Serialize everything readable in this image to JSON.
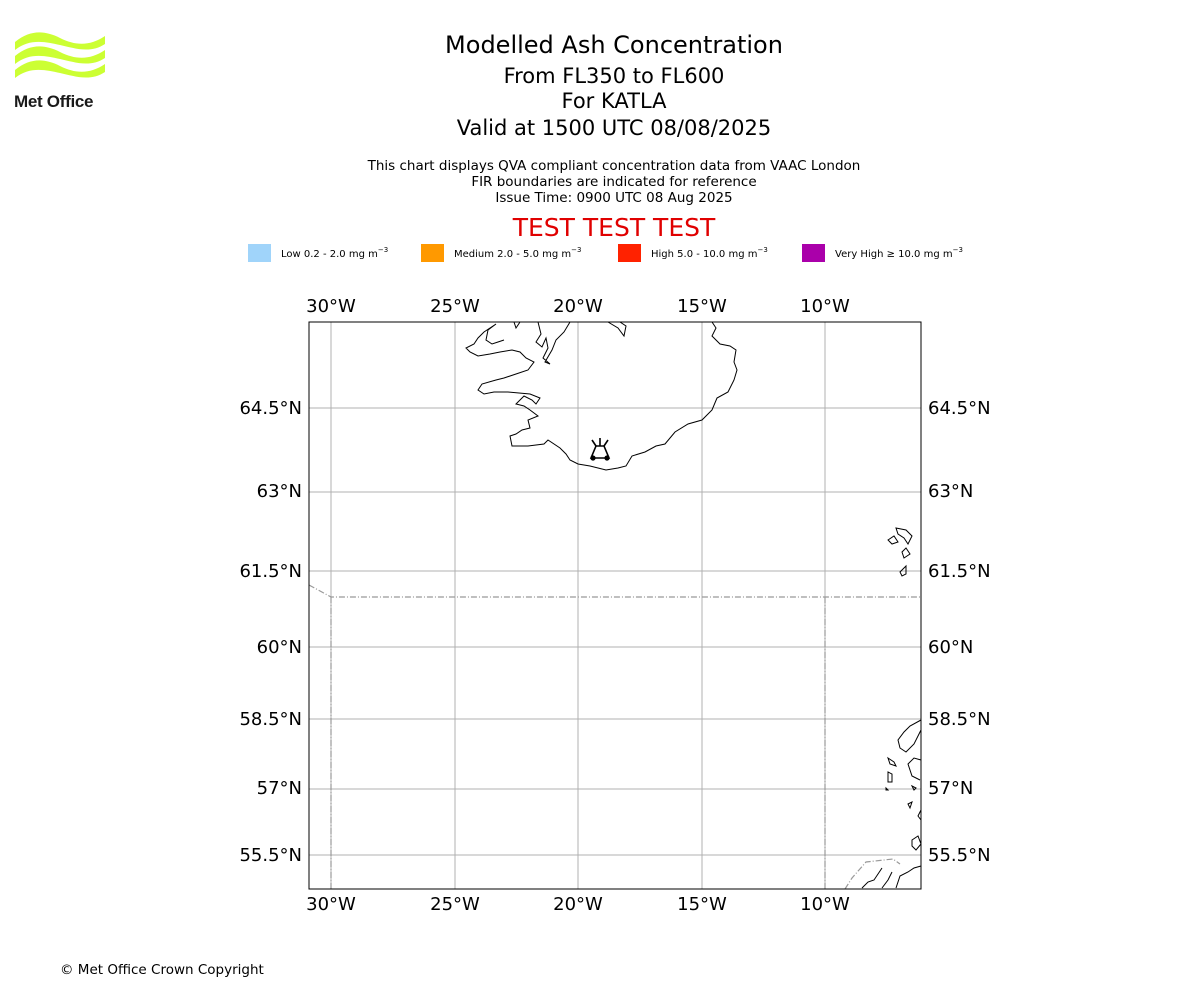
{
  "logo": {
    "text": "Met Office",
    "color": "#ccff33"
  },
  "title": {
    "main": "Modelled Ash Concentration",
    "levels": "From FL350 to FL600",
    "volcano": "For KATLA",
    "valid": "Valid at 1500 UTC 08/08/2025"
  },
  "info": {
    "line1": "This chart displays QVA compliant concentration data from VAAC London",
    "line2": "FIR boundaries are indicated for reference",
    "line3": "Issue Time: 0900 UTC 08 Aug 2025"
  },
  "test_banner": "TEST TEST TEST",
  "legend": [
    {
      "label": "Low 0.2 - 2.0 mg m",
      "exp": "−3",
      "color": "#a0d4fa"
    },
    {
      "label": "Medium 2.0 - 5.0 mg m",
      "exp": "−3",
      "color": "#ff9900"
    },
    {
      "label": "High 5.0 - 10.0 mg m",
      "exp": "−3",
      "color": "#ff2200"
    },
    {
      "label": "Very High ≥ 10.0 mg m",
      "exp": "−3",
      "color": "#aa00aa"
    }
  ],
  "map": {
    "lon_ticks": [
      "30°W",
      "25°W",
      "20°W",
      "15°W",
      "10°W"
    ],
    "lat_ticks": [
      "64.5°N",
      "63°N",
      "61.5°N",
      "60°N",
      "58.5°N",
      "57°N",
      "55.5°N"
    ],
    "volcano_marker": "volcano-icon"
  },
  "copyright": "© Met Office Crown Copyright"
}
